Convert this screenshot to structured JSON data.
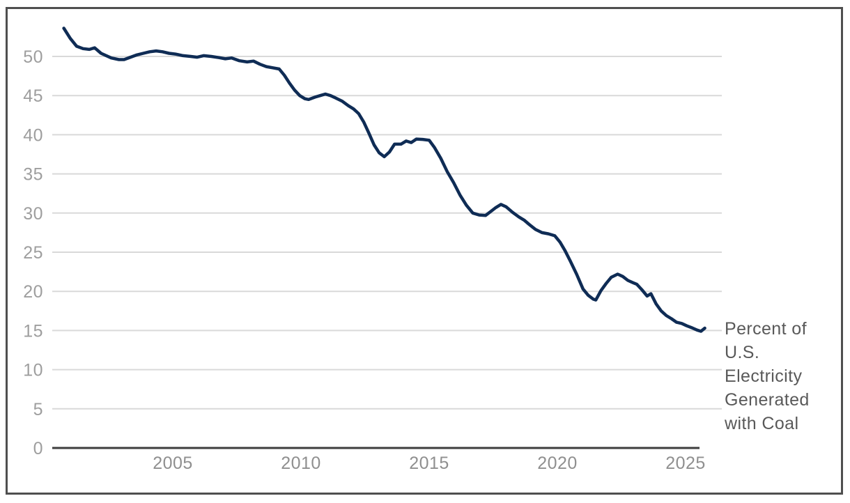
{
  "chart_data": {
    "type": "line",
    "title": "",
    "xlabel": "",
    "ylabel": "",
    "x_ticks": [
      2005,
      2010,
      2015,
      2020,
      2025
    ],
    "y_ticks": [
      0,
      5,
      10,
      15,
      20,
      25,
      30,
      35,
      40,
      45,
      50
    ],
    "xlim": [
      2000.3,
      2026.4
    ],
    "ylim": [
      0,
      54.5
    ],
    "grid": "horizontal",
    "legend_position": "right-of-line-end",
    "line_color": "#0f2c55",
    "grid_color": "#d9d9d9",
    "axis_color": "#3d3d3d",
    "y_tick_label_color": "#9e9e9e",
    "x_tick_label_color": "#8f8f8f",
    "annotation_color": "#595959",
    "frame_border_color": "#4f4f4f",
    "annotation": {
      "text": "Percent of U.S. Electricity Generated with Coal",
      "lines": [
        "Percent of",
        "U.S.",
        "Electricity",
        "Generated",
        "with Coal"
      ]
    },
    "series": [
      {
        "name": "Percent of U.S. Electricity Generated with Coal",
        "points": [
          [
            2000.75,
            53.6
          ],
          [
            2001.0,
            52.3
          ],
          [
            2001.25,
            51.3
          ],
          [
            2001.5,
            51.0
          ],
          [
            2001.75,
            50.9
          ],
          [
            2001.95,
            51.1
          ],
          [
            2002.2,
            50.4
          ],
          [
            2002.6,
            49.8
          ],
          [
            2002.9,
            49.6
          ],
          [
            2003.1,
            49.6
          ],
          [
            2003.35,
            49.9
          ],
          [
            2003.6,
            50.2
          ],
          [
            2003.85,
            50.4
          ],
          [
            2004.1,
            50.6
          ],
          [
            2004.35,
            50.7
          ],
          [
            2004.6,
            50.6
          ],
          [
            2004.85,
            50.4
          ],
          [
            2005.1,
            50.3
          ],
          [
            2005.4,
            50.1
          ],
          [
            2005.7,
            50.0
          ],
          [
            2005.95,
            49.9
          ],
          [
            2006.2,
            50.1
          ],
          [
            2006.5,
            50.0
          ],
          [
            2006.8,
            49.85
          ],
          [
            2007.05,
            49.7
          ],
          [
            2007.3,
            49.8
          ],
          [
            2007.6,
            49.45
          ],
          [
            2007.9,
            49.3
          ],
          [
            2008.15,
            49.4
          ],
          [
            2008.4,
            49.0
          ],
          [
            2008.65,
            48.7
          ],
          [
            2008.9,
            48.55
          ],
          [
            2009.15,
            48.4
          ],
          [
            2009.35,
            47.6
          ],
          [
            2009.55,
            46.6
          ],
          [
            2009.75,
            45.7
          ],
          [
            2009.95,
            45.0
          ],
          [
            2010.15,
            44.6
          ],
          [
            2010.3,
            44.5
          ],
          [
            2010.55,
            44.8
          ],
          [
            2010.75,
            45.0
          ],
          [
            2010.95,
            45.2
          ],
          [
            2011.15,
            45.0
          ],
          [
            2011.35,
            44.7
          ],
          [
            2011.6,
            44.3
          ],
          [
            2011.85,
            43.7
          ],
          [
            2012.05,
            43.3
          ],
          [
            2012.25,
            42.7
          ],
          [
            2012.45,
            41.6
          ],
          [
            2012.65,
            40.2
          ],
          [
            2012.85,
            38.7
          ],
          [
            2013.05,
            37.7
          ],
          [
            2013.25,
            37.2
          ],
          [
            2013.45,
            37.8
          ],
          [
            2013.65,
            38.8
          ],
          [
            2013.9,
            38.8
          ],
          [
            2014.1,
            39.2
          ],
          [
            2014.3,
            39.0
          ],
          [
            2014.5,
            39.45
          ],
          [
            2014.75,
            39.4
          ],
          [
            2015.0,
            39.3
          ],
          [
            2015.2,
            38.4
          ],
          [
            2015.45,
            37.0
          ],
          [
            2015.7,
            35.3
          ],
          [
            2015.95,
            33.9
          ],
          [
            2016.2,
            32.3
          ],
          [
            2016.45,
            31.0
          ],
          [
            2016.7,
            30.0
          ],
          [
            2016.95,
            29.75
          ],
          [
            2017.2,
            29.7
          ],
          [
            2017.4,
            30.2
          ],
          [
            2017.6,
            30.7
          ],
          [
            2017.8,
            31.1
          ],
          [
            2018.0,
            30.8
          ],
          [
            2018.25,
            30.1
          ],
          [
            2018.5,
            29.5
          ],
          [
            2018.7,
            29.1
          ],
          [
            2018.9,
            28.55
          ],
          [
            2019.15,
            27.9
          ],
          [
            2019.4,
            27.5
          ],
          [
            2019.65,
            27.35
          ],
          [
            2019.9,
            27.1
          ],
          [
            2020.1,
            26.3
          ],
          [
            2020.3,
            25.2
          ],
          [
            2020.5,
            23.9
          ],
          [
            2020.75,
            22.2
          ],
          [
            2021.0,
            20.3
          ],
          [
            2021.2,
            19.5
          ],
          [
            2021.4,
            19.0
          ],
          [
            2021.5,
            18.9
          ],
          [
            2021.7,
            20.1
          ],
          [
            2021.9,
            21.0
          ],
          [
            2022.1,
            21.8
          ],
          [
            2022.35,
            22.2
          ],
          [
            2022.55,
            21.9
          ],
          [
            2022.75,
            21.4
          ],
          [
            2022.95,
            21.1
          ],
          [
            2023.1,
            20.9
          ],
          [
            2023.3,
            20.2
          ],
          [
            2023.5,
            19.4
          ],
          [
            2023.65,
            19.7
          ],
          [
            2023.85,
            18.4
          ],
          [
            2024.05,
            17.5
          ],
          [
            2024.25,
            16.9
          ],
          [
            2024.45,
            16.5
          ],
          [
            2024.65,
            16.05
          ],
          [
            2024.85,
            15.9
          ],
          [
            2025.05,
            15.6
          ],
          [
            2025.25,
            15.35
          ],
          [
            2025.45,
            15.05
          ],
          [
            2025.6,
            14.9
          ],
          [
            2025.75,
            15.3
          ]
        ]
      }
    ]
  }
}
